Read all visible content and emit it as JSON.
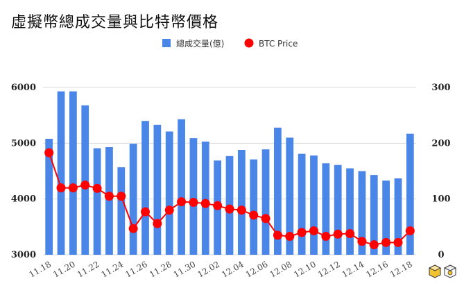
{
  "title": "虛擬幣總成交量與比特幣價格",
  "chart_data": {
    "type": "bar+line",
    "categories": [
      "11.18",
      "11.19",
      "11.20",
      "11.21",
      "11.22",
      "11.23",
      "11.24",
      "11.25",
      "11.26",
      "11.27",
      "11.28",
      "11.29",
      "11.30",
      "12.01",
      "12.02",
      "12.03",
      "12.04",
      "12.05",
      "12.06",
      "12.07",
      "12.08",
      "12.09",
      "12.10",
      "12.11",
      "12.12",
      "12.13",
      "12.14",
      "12.15",
      "12.16",
      "12.17",
      "12.18"
    ],
    "x_tick_labels": [
      "11.18",
      "11.20",
      "11.22",
      "11.24",
      "11.26",
      "11.28",
      "11.30",
      "12.02",
      "12.04",
      "12.06",
      "12.08",
      "12.10",
      "12.12",
      "12.14",
      "12.16",
      "12.18"
    ],
    "series": [
      {
        "name": "總成交量(億)",
        "type": "bar",
        "axis": "left",
        "color": "#4a86e8",
        "values": [
          5080,
          5930,
          5930,
          5680,
          4910,
          4930,
          4570,
          4990,
          5400,
          5330,
          5210,
          5430,
          5090,
          5030,
          4690,
          4770,
          4880,
          4710,
          4890,
          5280,
          5100,
          4810,
          4780,
          4640,
          4610,
          4550,
          4500,
          4430,
          4330,
          4370,
          5170
        ]
      },
      {
        "name": "BTC Price",
        "type": "line",
        "axis": "right",
        "color": "#ff0000",
        "values": [
          183,
          120,
          120,
          125,
          119,
          105,
          105,
          47,
          77,
          56,
          80,
          95,
          94,
          92,
          88,
          82,
          80,
          71,
          65,
          35,
          33,
          40,
          43,
          33,
          37,
          38,
          24,
          18,
          22,
          22,
          43
        ]
      }
    ],
    "y_left": {
      "ticks": [
        3000,
        4000,
        5000,
        6000
      ],
      "range": [
        3000,
        6000
      ]
    },
    "y_right": {
      "ticks": [
        0,
        100,
        200,
        300
      ],
      "range": [
        0,
        300
      ]
    },
    "grid": true,
    "legend": "top-center"
  },
  "colors": {
    "bar": "#4a86e8",
    "line": "#ff0000",
    "grid": "#d9d9d9"
  },
  "icons": {
    "logo": "cube-logo-icon"
  }
}
